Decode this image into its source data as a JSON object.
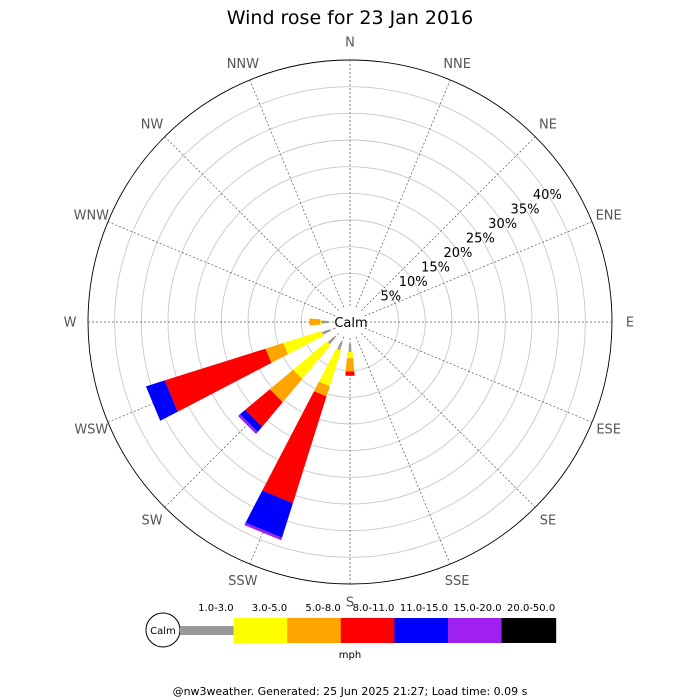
{
  "chart_data": {
    "type": "windrose",
    "title": "Wind rose for 23 Jan 2016",
    "calm_label": "Calm",
    "units": "mph",
    "directions": [
      "N",
      "NNE",
      "NE",
      "ENE",
      "E",
      "ESE",
      "SE",
      "SSE",
      "S",
      "SSW",
      "SW",
      "WSW",
      "W",
      "WNW",
      "NW",
      "NNW"
    ],
    "radial_ticks": [
      5,
      10,
      15,
      20,
      25,
      30,
      35,
      40
    ],
    "radial_tick_labels": [
      "5%",
      "10%",
      "15%",
      "20%",
      "25%",
      "30%",
      "35%",
      "40%"
    ],
    "r_max": 45,
    "legend": [
      {
        "label": "1.0-3.0",
        "color": "#999999"
      },
      {
        "label": "3.0-5.0",
        "color": "#ffff00"
      },
      {
        "label": "5.0-8.0",
        "color": "#ffa500"
      },
      {
        "label": "8.0-11.0",
        "color": "#ff0000"
      },
      {
        "label": "11.0-15.0",
        "color": "#0000ff"
      },
      {
        "label": "15.0-20.0",
        "color": "#a020f0"
      },
      {
        "label": "20.0-50.0",
        "color": "#000000"
      }
    ],
    "series": [
      {
        "direction": "S",
        "cumulative_percent": [
          1.5,
          2.7,
          5.2,
          6.0,
          6.0,
          6.0,
          6.0
        ]
      },
      {
        "direction": "SSW",
        "cumulative_percent": [
          1.5,
          8.5,
          10.5,
          31.5,
          38.3,
          38.8,
          38.8
        ]
      },
      {
        "direction": "SW",
        "cumulative_percent": [
          1.5,
          9.8,
          15.5,
          21.5,
          22.8,
          23.3,
          23.3
        ]
      },
      {
        "direction": "WSW",
        "cumulative_percent": [
          1.5,
          9.0,
          12.5,
          32.3,
          36.0,
          36.0,
          36.0
        ]
      },
      {
        "direction": "W",
        "cumulative_percent": [
          1.3,
          1.5,
          3.5,
          3.5,
          3.5,
          3.5,
          3.5
        ]
      }
    ]
  },
  "footer": {
    "text": "@nw3weather. Generated: 25 Jun 2025 21:27; Load time: 0.09 s"
  }
}
